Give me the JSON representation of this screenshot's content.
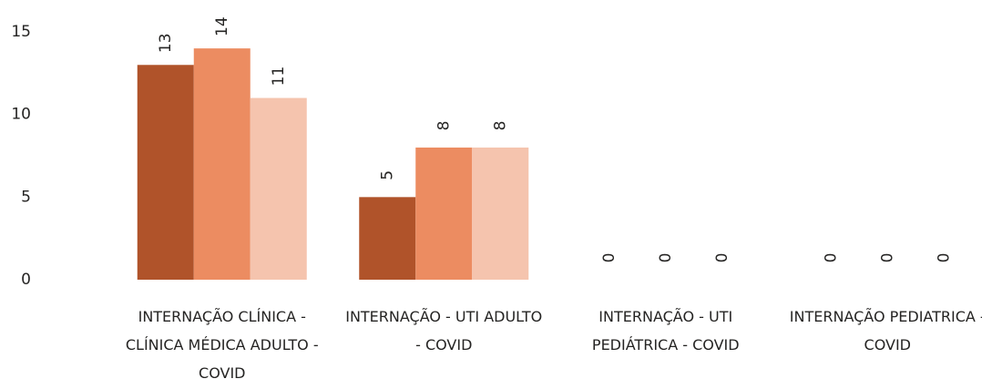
{
  "chart_data": {
    "type": "bar",
    "categories": [
      "INTERNAÇÃO CLÍNICA - CLÍNICA MÉDICA ADULTO - COVID",
      "INTERNAÇÃO - UTI ADULTO - COVID",
      "INTERNAÇÃO - UTI PEDIÁTRICA - COVID",
      "INTERNAÇÃO PEDIATRICA - COVID"
    ],
    "series": [
      {
        "color": "#b0532a",
        "values": [
          13,
          5,
          0,
          0
        ]
      },
      {
        "color": "#ec8c61",
        "values": [
          14,
          8,
          0,
          0
        ]
      },
      {
        "color": "#f5c4ae",
        "values": [
          11,
          8,
          0,
          0
        ]
      }
    ],
    "ylim": [
      0,
      15
    ],
    "yticks": [
      0,
      5,
      10,
      15
    ],
    "grid": false
  }
}
